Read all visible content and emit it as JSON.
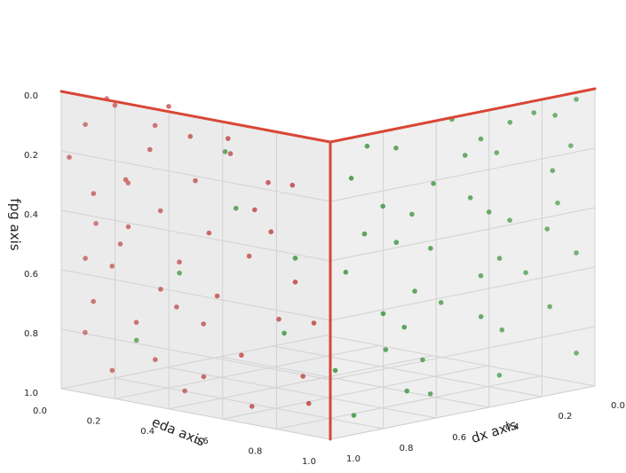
{
  "chart_data": {
    "type": "scatter",
    "projection": "3d",
    "grid": true,
    "axes": {
      "x": {
        "label": "dx axis",
        "ticks": [
          "0.0",
          "0.2",
          "0.4",
          "0.6",
          "0.8",
          "1.0"
        ],
        "range": [
          0,
          1
        ]
      },
      "y": {
        "label": "eda axis",
        "ticks": [
          "0.0",
          "0.2",
          "0.4",
          "0.6",
          "0.8",
          "1.0"
        ],
        "range": [
          0,
          1
        ]
      },
      "z": {
        "label": "fpg axis",
        "ticks": [
          "0.0",
          "0.2",
          "0.4",
          "0.6",
          "0.8",
          "1.0"
        ],
        "range": [
          0,
          1
        ],
        "inverted": true
      }
    },
    "lines": [
      {
        "name": "",
        "color": "#d94636",
        "from": [
          1,
          1,
          0
        ],
        "to": [
          0,
          1,
          0
        ]
      },
      {
        "name": "",
        "color": "#d94636",
        "from": [
          1,
          1,
          0
        ],
        "to": [
          1,
          0,
          0
        ]
      },
      {
        "name": "",
        "color": "#d94636",
        "from": [
          1,
          1,
          0
        ],
        "to": [
          1,
          1,
          1
        ]
      }
    ],
    "series": [
      {
        "name": "",
        "color": "#c0504d",
        "points": [
          [
            0.93,
            0.1,
            0.02
          ],
          [
            0.95,
            0.15,
            0.03
          ],
          [
            0.95,
            0.35,
            0.0
          ],
          [
            0.98,
            0.6,
            0.06
          ],
          [
            0.9,
            0.25,
            0.09
          ],
          [
            0.96,
            0.05,
            0.11
          ],
          [
            0.97,
            0.3,
            0.15
          ],
          [
            0.92,
            0.55,
            0.13
          ],
          [
            0.94,
            0.8,
            0.19
          ],
          [
            0.99,
            0.02,
            0.22
          ],
          [
            0.96,
            0.2,
            0.27
          ],
          [
            0.9,
            0.4,
            0.25
          ],
          [
            0.93,
            0.65,
            0.3
          ],
          [
            0.98,
            0.1,
            0.33
          ],
          [
            0.91,
            0.28,
            0.37
          ],
          [
            0.95,
            0.5,
            0.4
          ],
          [
            0.97,
            0.75,
            0.35
          ],
          [
            0.92,
            0.05,
            0.45
          ],
          [
            0.96,
            0.18,
            0.49
          ],
          [
            0.94,
            0.38,
            0.52
          ],
          [
            0.9,
            0.6,
            0.47
          ],
          [
            0.98,
            0.85,
            0.5
          ],
          [
            0.93,
            0.12,
            0.58
          ],
          [
            0.95,
            0.32,
            0.62
          ],
          [
            0.97,
            0.55,
            0.6
          ],
          [
            0.91,
            0.72,
            0.66
          ],
          [
            0.96,
            0.08,
            0.7
          ],
          [
            0.94,
            0.22,
            0.75
          ],
          [
            0.92,
            0.45,
            0.72
          ],
          [
            0.98,
            0.65,
            0.78
          ],
          [
            0.93,
            0.02,
            0.82
          ],
          [
            0.95,
            0.3,
            0.86
          ],
          [
            0.97,
            0.5,
            0.88
          ],
          [
            0.9,
            0.8,
            0.84
          ],
          [
            0.96,
            0.15,
            0.92
          ],
          [
            0.94,
            0.4,
            0.95
          ],
          [
            0.91,
            0.62,
            0.97
          ],
          [
            0.98,
            0.9,
            0.9
          ],
          [
            0.95,
            0.2,
            0.43
          ],
          [
            0.93,
            0.7,
            0.2
          ],
          [
            0.97,
            0.45,
            0.08
          ],
          [
            0.92,
            0.35,
            0.68
          ],
          [
            0.96,
            0.05,
            0.56
          ],
          [
            0.94,
            0.88,
            0.64
          ],
          [
            0.9,
            0.15,
            0.3
          ]
        ]
      },
      {
        "name": "",
        "color": "#4a9a4a",
        "points": [
          [
            0.05,
            0.98,
            0.03
          ],
          [
            0.1,
            0.95,
            0.08
          ],
          [
            0.2,
            0.97,
            0.05
          ],
          [
            0.35,
            0.92,
            0.12
          ],
          [
            0.5,
            0.96,
            0.02
          ],
          [
            0.65,
            0.9,
            0.1
          ],
          [
            0.8,
            0.94,
            0.06
          ],
          [
            0.02,
            0.93,
            0.2
          ],
          [
            0.15,
            0.99,
            0.25
          ],
          [
            0.28,
            0.91,
            0.18
          ],
          [
            0.42,
            0.95,
            0.3
          ],
          [
            0.58,
            0.97,
            0.22
          ],
          [
            0.72,
            0.92,
            0.28
          ],
          [
            0.88,
            0.96,
            0.15
          ],
          [
            0.08,
            0.94,
            0.38
          ],
          [
            0.22,
            0.9,
            0.42
          ],
          [
            0.38,
            0.98,
            0.35
          ],
          [
            0.55,
            0.93,
            0.45
          ],
          [
            0.7,
            0.95,
            0.4
          ],
          [
            0.85,
            0.91,
            0.48
          ],
          [
            0.04,
            0.97,
            0.55
          ],
          [
            0.18,
            0.92,
            0.6
          ],
          [
            0.32,
            0.96,
            0.52
          ],
          [
            0.48,
            0.9,
            0.65
          ],
          [
            0.62,
            0.94,
            0.58
          ],
          [
            0.78,
            0.98,
            0.62
          ],
          [
            0.12,
            0.95,
            0.72
          ],
          [
            0.26,
            0.91,
            0.78
          ],
          [
            0.4,
            0.97,
            0.7
          ],
          [
            0.58,
            0.93,
            0.82
          ],
          [
            0.75,
            0.96,
            0.75
          ],
          [
            0.9,
            0.92,
            0.8
          ],
          [
            0.06,
            0.99,
            0.88
          ],
          [
            0.3,
            0.94,
            0.92
          ],
          [
            0.52,
            0.9,
            0.95
          ],
          [
            0.68,
            0.97,
            0.9
          ],
          [
            0.84,
            0.93,
            0.96
          ],
          [
            0.45,
            0.96,
            0.15
          ],
          [
            0.25,
            0.93,
            0.08
          ],
          [
            0.6,
            0.91,
            0.33
          ],
          [
            0.15,
            0.97,
            0.45
          ],
          [
            0.82,
            0.95,
            0.35
          ],
          [
            0.35,
            0.92,
            0.58
          ],
          [
            0.7,
            0.98,
            0.68
          ],
          [
            0.95,
            0.6,
            0.3
          ],
          [
            0.96,
            0.4,
            0.55
          ],
          [
            0.92,
            0.75,
            0.7
          ],
          [
            0.97,
            0.25,
            0.8
          ],
          [
            0.94,
            0.55,
            0.12
          ],
          [
            0.98,
            0.85,
            0.42
          ]
        ]
      }
    ]
  }
}
